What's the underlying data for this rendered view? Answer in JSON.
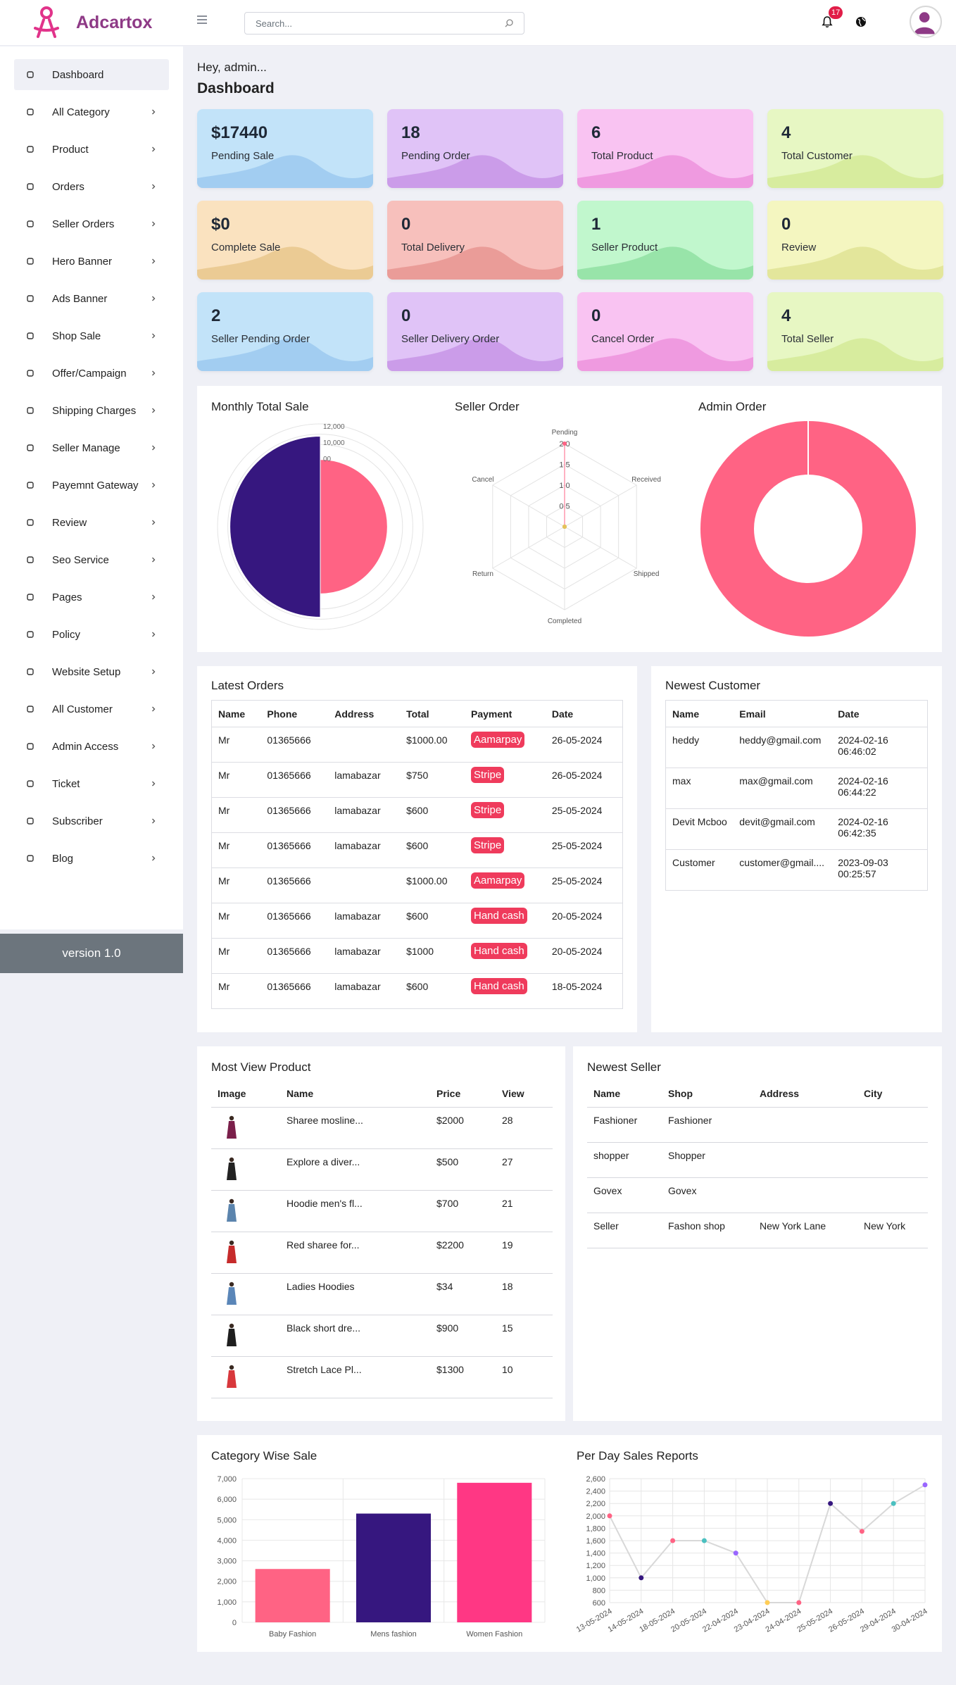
{
  "header": {
    "brand": "Adcartox",
    "search_placeholder": "Search...",
    "notification_count": "17",
    "colors": {
      "brand": "#8e3a86",
      "badge": "#e11d48"
    },
    "icons": [
      "menu-icon",
      "search-icon",
      "bell-icon",
      "globe-icon",
      "user-avatar-icon"
    ]
  },
  "sidebar": {
    "items": [
      {
        "label": "Dashboard",
        "icon": "dashboard-icon"
      },
      {
        "label": "All Category",
        "icon": "category-icon"
      },
      {
        "label": "Product",
        "icon": "product-icon"
      },
      {
        "label": "Orders",
        "icon": "orders-icon"
      },
      {
        "label": "Seller Orders",
        "icon": "seller-orders-icon"
      },
      {
        "label": "Hero Banner",
        "icon": "hero-banner-icon"
      },
      {
        "label": "Ads Banner",
        "icon": "ads-banner-icon"
      },
      {
        "label": "Shop Sale",
        "icon": "shop-sale-icon"
      },
      {
        "label": "Offer/Campaign",
        "icon": "campaign-icon"
      },
      {
        "label": "Shipping Charges",
        "icon": "truck-icon"
      },
      {
        "label": "Seller Manage",
        "icon": "seller-manage-icon"
      },
      {
        "label": "Payemnt Gateway",
        "icon": "payment-icon"
      },
      {
        "label": "Review",
        "icon": "review-icon"
      },
      {
        "label": "Seo Service",
        "icon": "seo-icon"
      },
      {
        "label": "Pages",
        "icon": "pages-icon"
      },
      {
        "label": "Policy",
        "icon": "policy-icon"
      },
      {
        "label": "Website Setup",
        "icon": "settings-icon"
      },
      {
        "label": "All Customer",
        "icon": "customer-icon"
      },
      {
        "label": "Admin Access",
        "icon": "key-icon"
      },
      {
        "label": "Ticket",
        "icon": "ticket-icon"
      },
      {
        "label": "Subscriber",
        "icon": "subscriber-icon"
      },
      {
        "label": "Blog",
        "icon": "blog-icon"
      }
    ],
    "version": "version 1.0"
  },
  "main": {
    "greeting": "Hey, admin...",
    "title": "Dashboard",
    "stats": [
      {
        "value": "$17440",
        "label": "Pending Sale",
        "bg": "#c2e3f9",
        "wave": "#a2cdf1"
      },
      {
        "value": "18",
        "label": "Pending Order",
        "bg": "#e0c3f7",
        "wave": "#cb9ce9"
      },
      {
        "value": "6",
        "label": "Total Product",
        "bg": "#f9c3f2",
        "wave": "#ef9ae0"
      },
      {
        "value": "4",
        "label": "Total Customer",
        "bg": "#e7f7c3",
        "wave": "#d7ec9e"
      },
      {
        "value": "$0",
        "label": "Complete Sale",
        "bg": "#fae2bf",
        "wave": "#ebcb94"
      },
      {
        "value": "0",
        "label": "Total Delivery",
        "bg": "#f7c0bc",
        "wave": "#ea9c98"
      },
      {
        "value": "1",
        "label": "Seller Product",
        "bg": "#c1f7cd",
        "wave": "#98e4a9"
      },
      {
        "value": "0",
        "label": "Review",
        "bg": "#f4f6c0",
        "wave": "#e3e69b"
      },
      {
        "value": "2",
        "label": "Seller Pending Order",
        "bg": "#c2e3f9",
        "wave": "#a2cdf1"
      },
      {
        "value": "0",
        "label": "Seller Delivery Order",
        "bg": "#e0c3f7",
        "wave": "#cb9ce9"
      },
      {
        "value": "0",
        "label": "Cancel Order",
        "bg": "#f9c3f2",
        "wave": "#ef9ae0"
      },
      {
        "value": "4",
        "label": "Total Seller",
        "bg": "#e7f7c3",
        "wave": "#d7ec9e"
      }
    ]
  },
  "chart_data": [
    {
      "type": "pie",
      "title": "Monthly Total Sale",
      "variant": "polar-area",
      "radial_ticks": [
        "12,000",
        "10,000",
        "00"
      ],
      "values": [
        10000,
        17440
      ],
      "colors": [
        "#ff6384",
        "#36177f"
      ]
    },
    {
      "type": "radar",
      "title": "Seller Order",
      "categories": [
        "Pending",
        "Received",
        "Shipped",
        "Completed",
        "Return",
        "Cancel"
      ],
      "values": [
        2,
        0,
        0,
        0,
        0,
        0
      ],
      "ticks": [
        "0.5",
        "1.0",
        "1.5",
        "2.0"
      ],
      "rmax": 2
    },
    {
      "type": "pie",
      "title": "Admin Order",
      "variant": "doughnut",
      "values": [
        100
      ],
      "colors": [
        "#ff6384"
      ]
    },
    {
      "type": "bar",
      "title": "Category Wise Sale",
      "categories": [
        "Baby Fashion",
        "Mens fashion",
        "Women Fashion"
      ],
      "values": [
        2600,
        5300,
        6800
      ],
      "colors": [
        "#ff6384",
        "#36177f",
        "#ff3784"
      ],
      "ylim": [
        0,
        7000
      ],
      "yticks": [
        "0",
        "1,000",
        "2,000",
        "3,000",
        "4,000",
        "5,000",
        "6,000",
        "7,000"
      ]
    },
    {
      "type": "line",
      "title": "Per Day Sales Reports",
      "categories": [
        "13-05-2024",
        "14-05-2024",
        "18-05-2024",
        "20-05-2024",
        "22-04-2024",
        "23-04-2024",
        "24-04-2024",
        "25-05-2024",
        "26-05-2024",
        "29-04-2024",
        "30-04-2024"
      ],
      "values": [
        2000,
        1000,
        1600,
        1600,
        1400,
        600,
        600,
        2200,
        1750,
        2200,
        2500
      ],
      "point_colors": [
        "#ff6384",
        "#36177f",
        "#ff6384",
        "#4bc0c0",
        "#9966ff",
        "#ffcd56",
        "#ff6384",
        "#36177f",
        "#ff6384",
        "#4bc0c0",
        "#9966ff"
      ],
      "ylim": [
        600,
        2600
      ],
      "yticks": [
        "600",
        "800",
        "1,000",
        "1,200",
        "1,400",
        "1,600",
        "1,800",
        "2,000",
        "2,200",
        "2,400",
        "2,600"
      ]
    }
  ],
  "latest_orders": {
    "title": "Latest Orders",
    "columns": [
      "Name",
      "Phone",
      "Address",
      "Total",
      "Payment",
      "Date"
    ],
    "rows": [
      [
        "Mr",
        "01365666",
        "",
        "$1000.00",
        "Aamarpay",
        "26-05-2024"
      ],
      [
        "Mr",
        "01365666",
        "lamabazar",
        "$750",
        "Stripe",
        "26-05-2024"
      ],
      [
        "Mr",
        "01365666",
        "lamabazar",
        "$600",
        "Stripe",
        "25-05-2024"
      ],
      [
        "Mr",
        "01365666",
        "lamabazar",
        "$600",
        "Stripe",
        "25-05-2024"
      ],
      [
        "Mr",
        "01365666",
        "",
        "$1000.00",
        "Aamarpay",
        "25-05-2024"
      ],
      [
        "Mr",
        "01365666",
        "lamabazar",
        "$600",
        "Hand cash",
        "20-05-2024"
      ],
      [
        "Mr",
        "01365666",
        "lamabazar",
        "$1000",
        "Hand cash",
        "20-05-2024"
      ],
      [
        "Mr",
        "01365666",
        "lamabazar",
        "$600",
        "Hand cash",
        "18-05-2024"
      ]
    ]
  },
  "newest_customer": {
    "title": "Newest Customer",
    "columns": [
      "Name",
      "Email",
      "Date"
    ],
    "rows": [
      [
        "heddy",
        "heddy@gmail.com",
        "2024-02-16 06:46:02"
      ],
      [
        "max",
        "max@gmail.com",
        "2024-02-16 06:44:22"
      ],
      [
        "Devit Mcboo",
        "devit@gmail.com",
        "2024-02-16 06:42:35"
      ],
      [
        "Customer",
        "customer@gmail....",
        "2023-09-03 00:25:57"
      ]
    ]
  },
  "most_view_product": {
    "title": "Most View Product",
    "columns": [
      "Image",
      "Name",
      "Price",
      "View"
    ],
    "rows": [
      {
        "name": "Sharee mosline...",
        "price": "$2000",
        "view": "28",
        "thumb_color": "#7a1f4a",
        "icon": "saree-thumbnail"
      },
      {
        "name": "Explore a diver...",
        "price": "$500",
        "view": "27",
        "thumb_color": "#222222",
        "icon": "dress-thumbnail"
      },
      {
        "name": "Hoodie men's fl...",
        "price": "$700",
        "view": "21",
        "thumb_color": "#5b84ad",
        "icon": "hoodie-thumbnail"
      },
      {
        "name": "Red sharee for...",
        "price": "$2200",
        "view": "19",
        "thumb_color": "#c62b2b",
        "icon": "saree-thumbnail"
      },
      {
        "name": "Ladies Hoodies",
        "price": "$34",
        "view": "18",
        "thumb_color": "#5a86b8",
        "icon": "hoodie-thumbnail"
      },
      {
        "name": "Black short dre...",
        "price": "$900",
        "view": "15",
        "thumb_color": "#1e1e1e",
        "icon": "dress-thumbnail"
      },
      {
        "name": "Stretch Lace Pl...",
        "price": "$1300",
        "view": "10",
        "thumb_color": "#d8383c",
        "icon": "dress-thumbnail"
      }
    ]
  },
  "newest_seller": {
    "title": "Newest Seller",
    "columns": [
      "Name",
      "Shop",
      "Address",
      "City"
    ],
    "rows": [
      [
        "Fashioner",
        "Fashioner",
        "",
        ""
      ],
      [
        "shopper",
        "Shopper",
        "",
        ""
      ],
      [
        "Govex",
        "Govex",
        "",
        ""
      ],
      [
        "Seller",
        "Fashon shop",
        "New York Lane",
        "New York"
      ]
    ]
  }
}
